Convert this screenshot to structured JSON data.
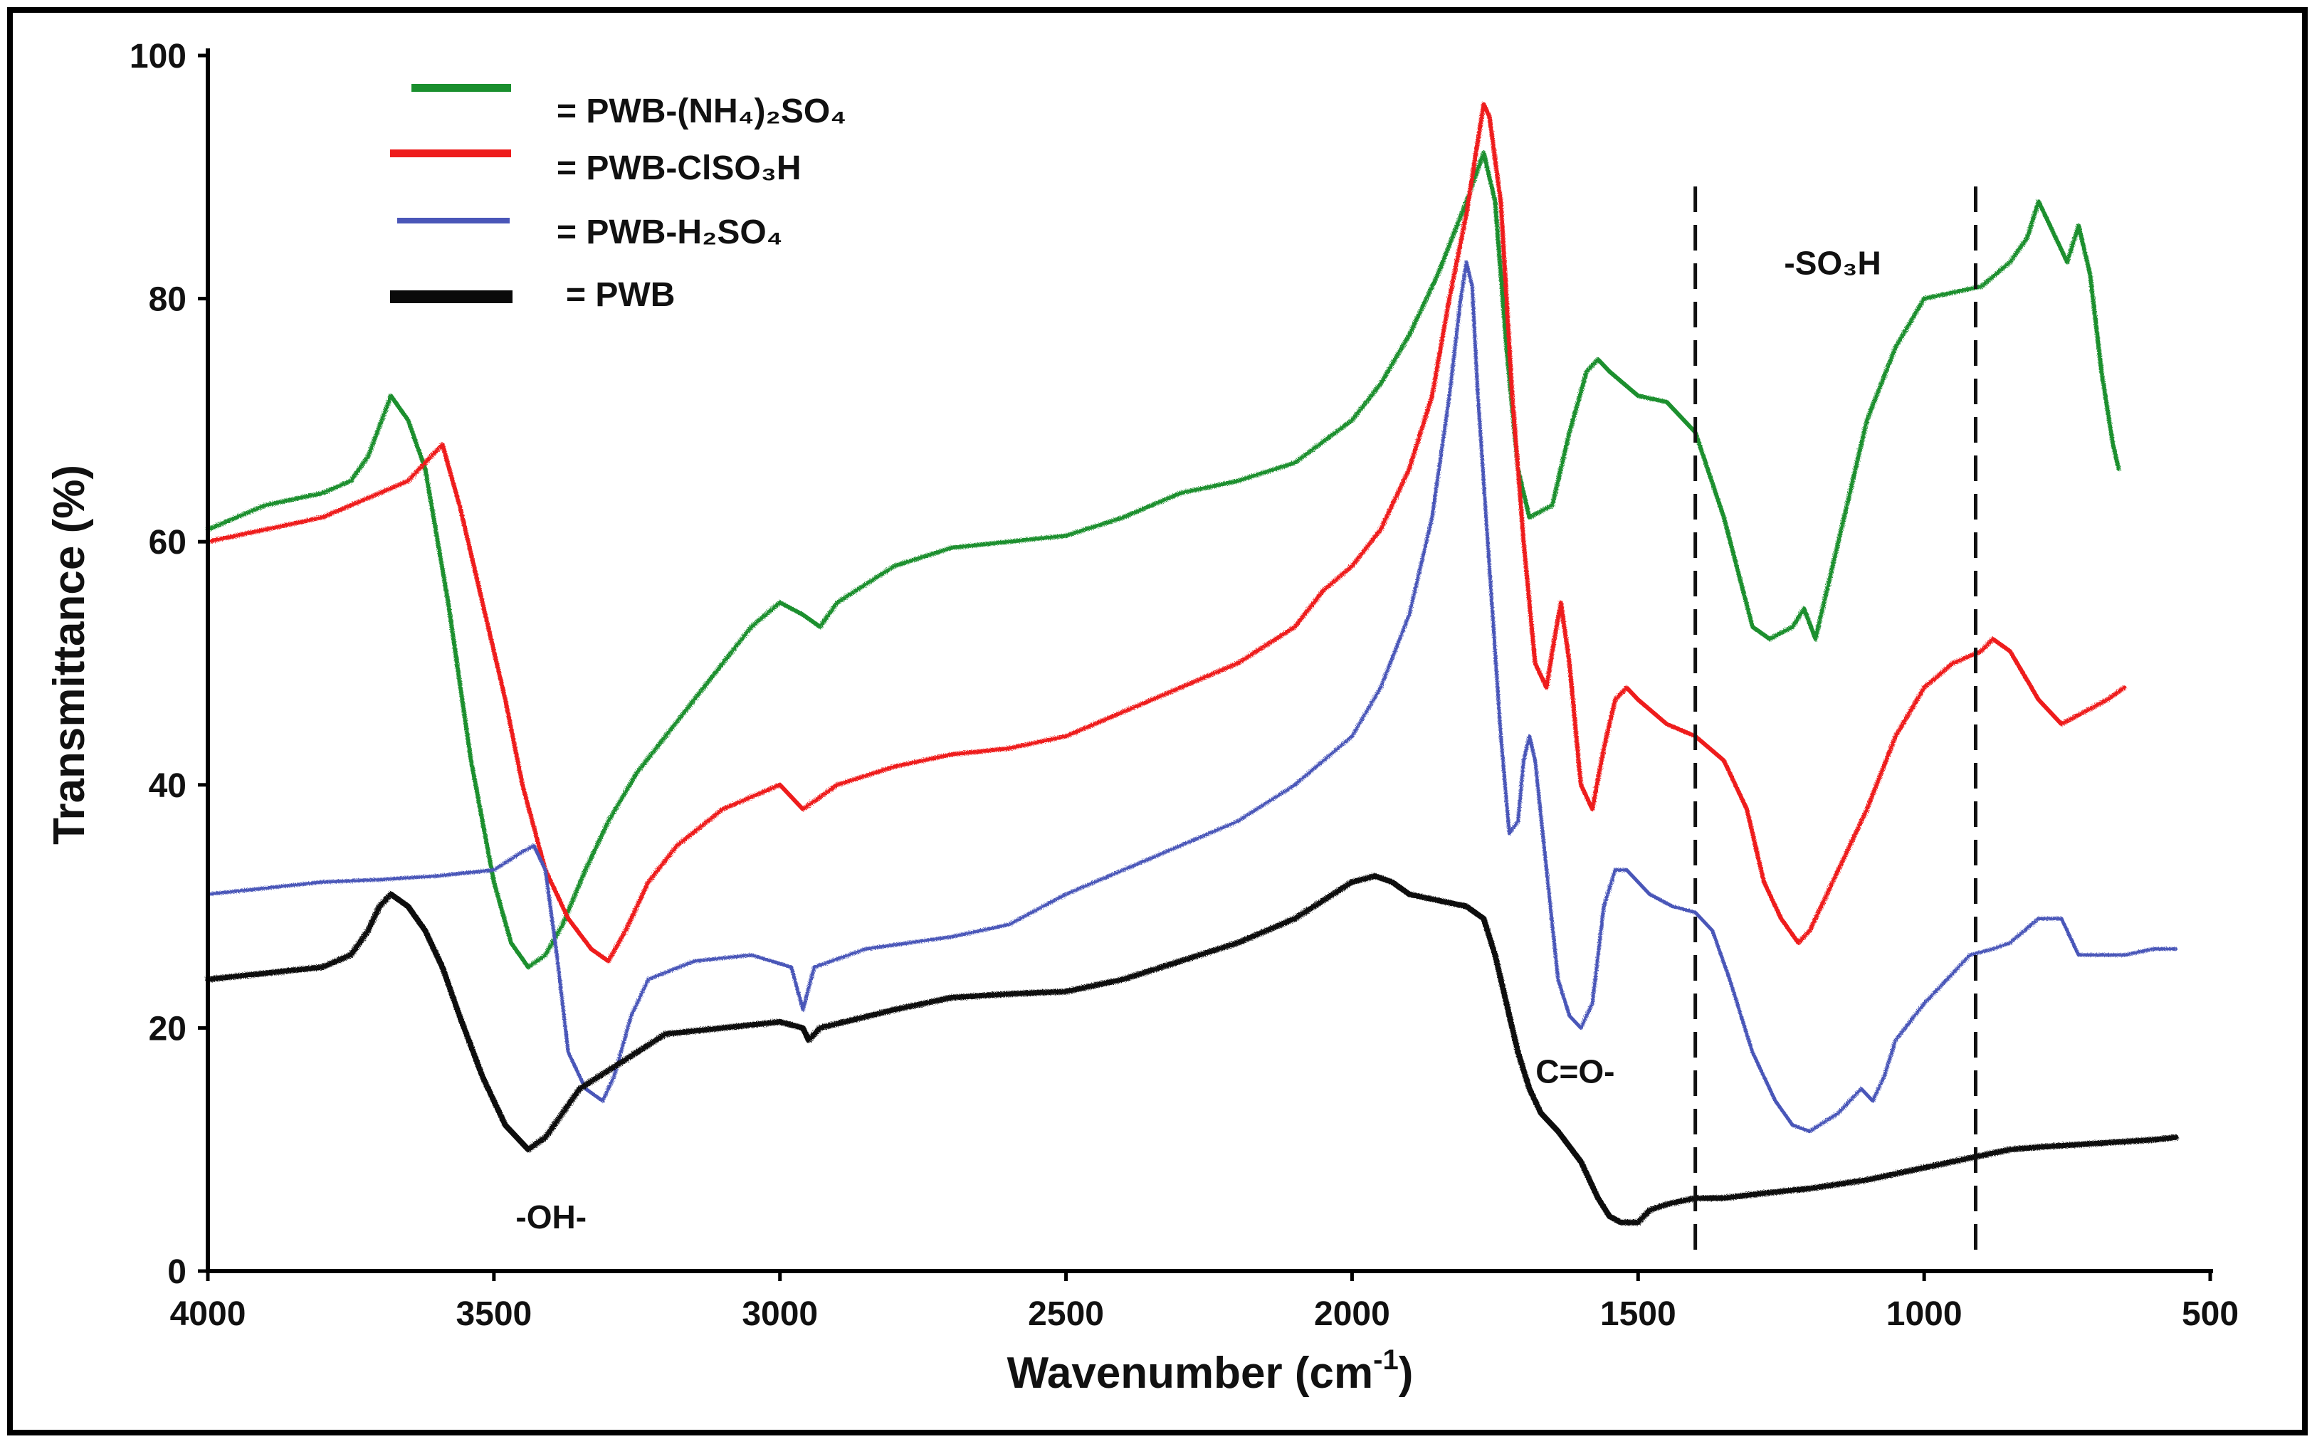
{
  "chart_data": {
    "type": "line",
    "title": "",
    "xlabel": "Wavenumber (cm-1)",
    "ylabel": "Transmittance (%)",
    "xlim": [
      4000,
      500
    ],
    "ylim": [
      0,
      100
    ],
    "x_ticks": [
      4000,
      3500,
      3000,
      2500,
      2000,
      1500,
      1000,
      500
    ],
    "y_ticks": [
      0,
      20,
      40,
      60,
      80,
      100
    ],
    "grid": false,
    "legend_position": "top-left",
    "series": [
      {
        "name": "PWB-(NH4)2SO4",
        "color": "#1a8f2e",
        "points": [
          [
            4000,
            61
          ],
          [
            3950,
            62
          ],
          [
            3900,
            63
          ],
          [
            3850,
            63.5
          ],
          [
            3800,
            64
          ],
          [
            3750,
            65
          ],
          [
            3720,
            67
          ],
          [
            3680,
            72
          ],
          [
            3650,
            70
          ],
          [
            3620,
            66
          ],
          [
            3580,
            55
          ],
          [
            3540,
            42
          ],
          [
            3500,
            32
          ],
          [
            3470,
            27
          ],
          [
            3440,
            25
          ],
          [
            3410,
            26
          ],
          [
            3380,
            28.5
          ],
          [
            3340,
            33
          ],
          [
            3300,
            37
          ],
          [
            3250,
            41
          ],
          [
            3200,
            44
          ],
          [
            3150,
            47
          ],
          [
            3100,
            50
          ],
          [
            3050,
            53
          ],
          [
            3000,
            55
          ],
          [
            2960,
            54
          ],
          [
            2930,
            53
          ],
          [
            2900,
            55
          ],
          [
            2800,
            58
          ],
          [
            2700,
            59.5
          ],
          [
            2600,
            60
          ],
          [
            2500,
            60.5
          ],
          [
            2400,
            62
          ],
          [
            2300,
            64
          ],
          [
            2200,
            65
          ],
          [
            2100,
            66.5
          ],
          [
            2000,
            70
          ],
          [
            1950,
            73
          ],
          [
            1900,
            77
          ],
          [
            1850,
            82
          ],
          [
            1800,
            88
          ],
          [
            1770,
            92
          ],
          [
            1750,
            88
          ],
          [
            1730,
            76
          ],
          [
            1710,
            66
          ],
          [
            1690,
            62
          ],
          [
            1650,
            63
          ],
          [
            1620,
            69
          ],
          [
            1590,
            74
          ],
          [
            1570,
            75
          ],
          [
            1550,
            74
          ],
          [
            1500,
            72
          ],
          [
            1450,
            71.5
          ],
          [
            1400,
            69
          ],
          [
            1350,
            62
          ],
          [
            1300,
            53
          ],
          [
            1270,
            52
          ],
          [
            1230,
            53
          ],
          [
            1210,
            54.5
          ],
          [
            1190,
            52
          ],
          [
            1150,
            60
          ],
          [
            1100,
            70
          ],
          [
            1050,
            76
          ],
          [
            1000,
            80
          ],
          [
            950,
            80.5
          ],
          [
            900,
            81
          ],
          [
            850,
            83
          ],
          [
            820,
            85
          ],
          [
            800,
            88
          ],
          [
            780,
            86
          ],
          [
            750,
            83
          ],
          [
            730,
            86
          ],
          [
            710,
            82
          ],
          [
            690,
            74
          ],
          [
            670,
            68
          ],
          [
            660,
            66
          ]
        ]
      },
      {
        "name": "PWB-ClSO3H",
        "color": "#ee1c1c",
        "points": [
          [
            4000,
            60
          ],
          [
            3900,
            61
          ],
          [
            3800,
            62
          ],
          [
            3750,
            63
          ],
          [
            3700,
            64
          ],
          [
            3650,
            65
          ],
          [
            3610,
            67
          ],
          [
            3590,
            68
          ],
          [
            3560,
            63
          ],
          [
            3520,
            55
          ],
          [
            3480,
            47
          ],
          [
            3450,
            40
          ],
          [
            3410,
            33
          ],
          [
            3370,
            29
          ],
          [
            3330,
            26.5
          ],
          [
            3300,
            25.5
          ],
          [
            3270,
            28
          ],
          [
            3230,
            32
          ],
          [
            3180,
            35
          ],
          [
            3100,
            38
          ],
          [
            3000,
            40
          ],
          [
            2960,
            38
          ],
          [
            2900,
            40
          ],
          [
            2800,
            41.5
          ],
          [
            2700,
            42.5
          ],
          [
            2600,
            43
          ],
          [
            2500,
            44
          ],
          [
            2400,
            46
          ],
          [
            2300,
            48
          ],
          [
            2200,
            50
          ],
          [
            2100,
            53
          ],
          [
            2050,
            56
          ],
          [
            2000,
            58
          ],
          [
            1950,
            61
          ],
          [
            1900,
            66
          ],
          [
            1860,
            72
          ],
          [
            1830,
            80
          ],
          [
            1800,
            87
          ],
          [
            1780,
            93
          ],
          [
            1770,
            96
          ],
          [
            1760,
            95
          ],
          [
            1740,
            88
          ],
          [
            1720,
            72
          ],
          [
            1700,
            60
          ],
          [
            1680,
            50
          ],
          [
            1660,
            48
          ],
          [
            1650,
            51
          ],
          [
            1635,
            55
          ],
          [
            1620,
            50
          ],
          [
            1600,
            40
          ],
          [
            1580,
            38
          ],
          [
            1560,
            43
          ],
          [
            1540,
            47
          ],
          [
            1520,
            48
          ],
          [
            1500,
            47
          ],
          [
            1450,
            45
          ],
          [
            1400,
            44
          ],
          [
            1350,
            42
          ],
          [
            1310,
            38
          ],
          [
            1280,
            32
          ],
          [
            1250,
            29
          ],
          [
            1220,
            27
          ],
          [
            1200,
            28
          ],
          [
            1150,
            33
          ],
          [
            1100,
            38
          ],
          [
            1050,
            44
          ],
          [
            1000,
            48
          ],
          [
            950,
            50
          ],
          [
            900,
            51
          ],
          [
            880,
            52
          ],
          [
            850,
            51
          ],
          [
            800,
            47
          ],
          [
            760,
            45
          ],
          [
            720,
            46
          ],
          [
            680,
            47
          ],
          [
            650,
            48
          ]
        ]
      },
      {
        "name": "PWB-H2SO4",
        "color": "#4a56b8",
        "points": [
          [
            4000,
            31
          ],
          [
            3900,
            31.5
          ],
          [
            3800,
            32
          ],
          [
            3700,
            32.2
          ],
          [
            3600,
            32.5
          ],
          [
            3500,
            33
          ],
          [
            3450,
            34.5
          ],
          [
            3430,
            35
          ],
          [
            3410,
            33
          ],
          [
            3390,
            26
          ],
          [
            3370,
            18
          ],
          [
            3340,
            15
          ],
          [
            3310,
            14
          ],
          [
            3290,
            16
          ],
          [
            3260,
            21
          ],
          [
            3230,
            24
          ],
          [
            3150,
            25.5
          ],
          [
            3050,
            26
          ],
          [
            2980,
            25
          ],
          [
            2960,
            21.5
          ],
          [
            2940,
            25
          ],
          [
            2850,
            26.5
          ],
          [
            2700,
            27.5
          ],
          [
            2600,
            28.5
          ],
          [
            2500,
            31
          ],
          [
            2400,
            33
          ],
          [
            2300,
            35
          ],
          [
            2200,
            37
          ],
          [
            2100,
            40
          ],
          [
            2000,
            44
          ],
          [
            1950,
            48
          ],
          [
            1900,
            54
          ],
          [
            1860,
            62
          ],
          [
            1830,
            72
          ],
          [
            1810,
            80
          ],
          [
            1800,
            83
          ],
          [
            1790,
            81
          ],
          [
            1780,
            72
          ],
          [
            1760,
            58
          ],
          [
            1740,
            44
          ],
          [
            1725,
            36
          ],
          [
            1710,
            37
          ],
          [
            1700,
            42
          ],
          [
            1690,
            44
          ],
          [
            1680,
            42
          ],
          [
            1660,
            33
          ],
          [
            1640,
            24
          ],
          [
            1620,
            21
          ],
          [
            1600,
            20
          ],
          [
            1580,
            22
          ],
          [
            1560,
            30
          ],
          [
            1540,
            33
          ],
          [
            1520,
            33
          ],
          [
            1480,
            31
          ],
          [
            1440,
            30
          ],
          [
            1400,
            29.5
          ],
          [
            1370,
            28
          ],
          [
            1340,
            24
          ],
          [
            1300,
            18
          ],
          [
            1260,
            14
          ],
          [
            1230,
            12
          ],
          [
            1200,
            11.5
          ],
          [
            1150,
            13
          ],
          [
            1110,
            15
          ],
          [
            1090,
            14
          ],
          [
            1070,
            16
          ],
          [
            1050,
            19
          ],
          [
            1000,
            22
          ],
          [
            960,
            24
          ],
          [
            920,
            26
          ],
          [
            880,
            26.5
          ],
          [
            850,
            27
          ],
          [
            800,
            29
          ],
          [
            760,
            29
          ],
          [
            730,
            26
          ],
          [
            700,
            26
          ],
          [
            650,
            26
          ],
          [
            600,
            26.5
          ],
          [
            560,
            26.5
          ]
        ]
      },
      {
        "name": "PWB",
        "color": "#0a0a0a",
        "points": [
          [
            4000,
            24
          ],
          [
            3900,
            24.5
          ],
          [
            3800,
            25
          ],
          [
            3750,
            26
          ],
          [
            3720,
            28
          ],
          [
            3700,
            30
          ],
          [
            3680,
            31
          ],
          [
            3650,
            30
          ],
          [
            3620,
            28
          ],
          [
            3590,
            25
          ],
          [
            3560,
            21
          ],
          [
            3520,
            16
          ],
          [
            3480,
            12
          ],
          [
            3440,
            10
          ],
          [
            3410,
            11
          ],
          [
            3380,
            13
          ],
          [
            3350,
            15
          ],
          [
            3300,
            16.5
          ],
          [
            3250,
            18
          ],
          [
            3200,
            19.5
          ],
          [
            3100,
            20
          ],
          [
            3000,
            20.5
          ],
          [
            2960,
            20
          ],
          [
            2950,
            19
          ],
          [
            2930,
            20
          ],
          [
            2800,
            21.5
          ],
          [
            2700,
            22.5
          ],
          [
            2600,
            22.8
          ],
          [
            2500,
            23
          ],
          [
            2400,
            24
          ],
          [
            2300,
            25.5
          ],
          [
            2200,
            27
          ],
          [
            2100,
            29
          ],
          [
            2050,
            30.5
          ],
          [
            2000,
            32
          ],
          [
            1960,
            32.5
          ],
          [
            1930,
            32
          ],
          [
            1900,
            31
          ],
          [
            1850,
            30.5
          ],
          [
            1800,
            30
          ],
          [
            1770,
            29
          ],
          [
            1750,
            26
          ],
          [
            1730,
            22
          ],
          [
            1710,
            18
          ],
          [
            1690,
            15
          ],
          [
            1670,
            13
          ],
          [
            1640,
            11.5
          ],
          [
            1600,
            9
          ],
          [
            1570,
            6
          ],
          [
            1550,
            4.5
          ],
          [
            1530,
            4
          ],
          [
            1500,
            4
          ],
          [
            1480,
            5
          ],
          [
            1450,
            5.5
          ],
          [
            1400,
            6
          ],
          [
            1350,
            6
          ],
          [
            1300,
            6.3
          ],
          [
            1200,
            6.8
          ],
          [
            1100,
            7.5
          ],
          [
            1000,
            8.5
          ],
          [
            950,
            9
          ],
          [
            900,
            9.5
          ],
          [
            850,
            10
          ],
          [
            800,
            10.2
          ],
          [
            700,
            10.5
          ],
          [
            600,
            10.8
          ],
          [
            560,
            11
          ]
        ]
      }
    ],
    "legend": [
      {
        "label": "=  PWB-(NH₄)₂SO₄"
      },
      {
        "label": "=  PWB-ClSO₃H"
      },
      {
        "label": "=  PWB-H₂SO₄"
      },
      {
        "label": "=  PWB"
      }
    ],
    "reference_lines": [
      1400,
      910
    ],
    "annotations": [
      {
        "text": "-OH-",
        "x": 3400,
        "y": 3.5
      },
      {
        "text": "C=O-",
        "x": 1610,
        "y": 15.5
      },
      {
        "text": "-SO₃H",
        "x": 1160,
        "y": 82
      }
    ]
  }
}
